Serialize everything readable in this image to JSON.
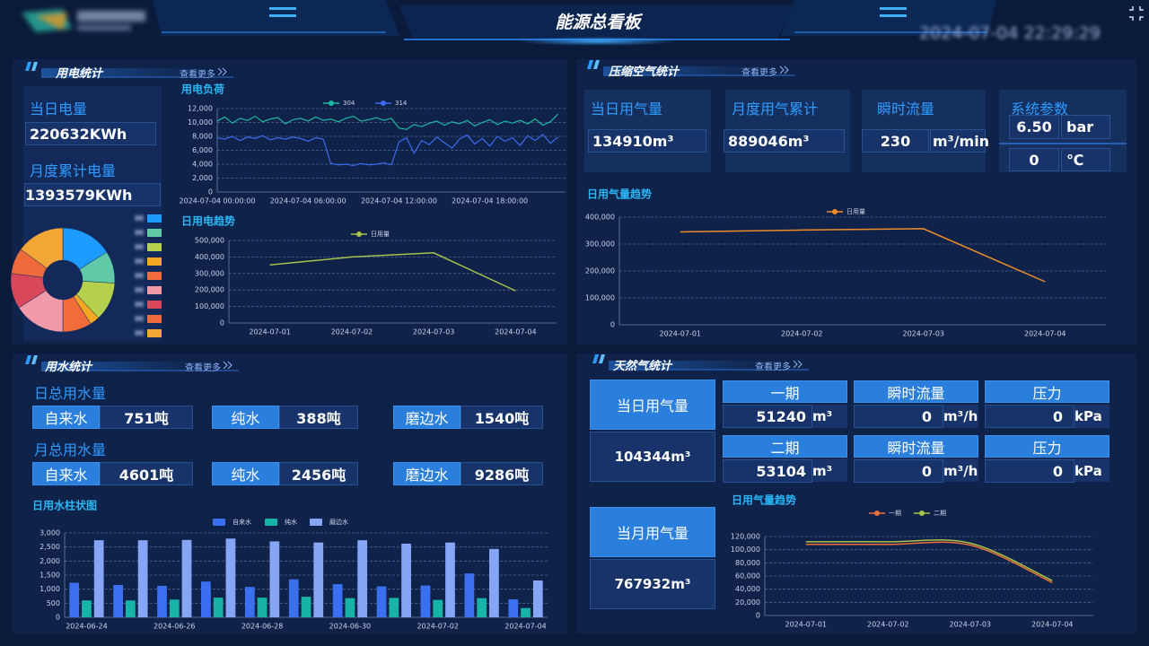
{
  "header": {
    "title": "能源总看板",
    "datetime": "2024-07-04 22:29:29"
  },
  "electricity": {
    "title": "用电统计",
    "more": "查看更多",
    "daily_label": "当日电量",
    "daily_value": "220632KWh",
    "monthly_label": "月度累计电量",
    "monthly_value": "1393579KWh"
  },
  "air": {
    "title": "压缩空气统计",
    "more": "查看更多",
    "cards": [
      {
        "label": "当日用气量",
        "value": "134910m³"
      },
      {
        "label": "月度用气累计",
        "value": "889046m³"
      },
      {
        "label": "瞬时流量",
        "value": "230",
        "unit": "m³/min"
      }
    ],
    "params": {
      "label": "系统参数",
      "pressure": "6.50",
      "pressure_unit": "bar",
      "temperature": "0",
      "temperature_unit": "℃"
    }
  },
  "water": {
    "title": "用水统计",
    "more": "查看更多",
    "groups": [
      {
        "label": "日总用水量",
        "items": [
          {
            "name": "自来水",
            "value": "751吨"
          },
          {
            "name": "纯水",
            "value": "388吨"
          },
          {
            "name": "磨边水",
            "value": "1540吨"
          }
        ]
      },
      {
        "label": "月总用水量",
        "items": [
          {
            "name": "自来水",
            "value": "4601吨"
          },
          {
            "name": "纯水",
            "value": "2456吨"
          },
          {
            "name": "磨边水",
            "value": "9286吨"
          }
        ]
      }
    ]
  },
  "gas": {
    "title": "天然气统计",
    "more": "查看更多",
    "totals": [
      {
        "label": "当日用气量",
        "value": "104344m³"
      },
      {
        "label": "当月用气量",
        "value": "767932m³"
      }
    ],
    "rows": [
      [
        {
          "label": "一期",
          "value": "51240",
          "unit": "m³"
        },
        {
          "label": "瞬时流量",
          "value": "0",
          "unit": "m³/h"
        },
        {
          "label": "压力",
          "value": "0",
          "unit": "kPa"
        }
      ],
      [
        {
          "label": "二期",
          "value": "53104",
          "unit": "m³"
        },
        {
          "label": "瞬时流量",
          "value": "0",
          "unit": "m³/h"
        },
        {
          "label": "压力",
          "value": "0",
          "unit": "kPa"
        }
      ]
    ]
  },
  "chart_data": [
    {
      "type": "pie",
      "categories": [
        null,
        null,
        null,
        null,
        null,
        null,
        null,
        null,
        null
      ],
      "values": [
        16,
        10,
        12,
        3,
        9,
        16,
        11,
        8,
        15
      ],
      "colors": [
        "#1e9bff",
        "#5fc9a8",
        "#b4d04c",
        "#f5a623",
        "#f26b3a",
        "#f09aaa",
        "#d9475a",
        "#ee6a3b",
        "#f3a535"
      ]
    },
    {
      "type": "line",
      "title": "用电负荷",
      "x": [
        "2024-07-04 00:00:00",
        "2024-07-04 00:30:00",
        "2024-07-04 01:00:00",
        "2024-07-04 01:30:00",
        "2024-07-04 02:00:00",
        "2024-07-04 02:30:00",
        "2024-07-04 03:00:00",
        "2024-07-04 03:30:00",
        "2024-07-04 04:00:00",
        "2024-07-04 04:30:00",
        "2024-07-04 05:00:00",
        "2024-07-04 05:30:00",
        "2024-07-04 06:00:00",
        "2024-07-04 06:30:00",
        "2024-07-04 07:00:00",
        "2024-07-04 07:30:00",
        "2024-07-04 08:00:00",
        "2024-07-04 08:30:00",
        "2024-07-04 09:00:00",
        "2024-07-04 09:30:00",
        "2024-07-04 10:00:00",
        "2024-07-04 10:30:00",
        "2024-07-04 11:00:00",
        "2024-07-04 11:30:00",
        "2024-07-04 12:00:00",
        "2024-07-04 12:30:00",
        "2024-07-04 13:00:00",
        "2024-07-04 13:30:00",
        "2024-07-04 14:00:00",
        "2024-07-04 14:30:00",
        "2024-07-04 15:00:00",
        "2024-07-04 15:30:00",
        "2024-07-04 16:00:00",
        "2024-07-04 16:30:00",
        "2024-07-04 17:00:00",
        "2024-07-04 17:30:00",
        "2024-07-04 18:00:00",
        "2024-07-04 18:30:00",
        "2024-07-04 19:00:00",
        "2024-07-04 19:30:00",
        "2024-07-04 20:00:00",
        "2024-07-04 20:30:00",
        "2024-07-04 21:00:00",
        "2024-07-04 21:30:00",
        "2024-07-04 22:00:00",
        "2024-07-04 22:30:00"
      ],
      "xticks": [
        "2024-07-04 00:00:00",
        "2024-07-04 06:00:00",
        "2024-07-04 12:00:00",
        "2024-07-04 18:00:00"
      ],
      "series": [
        {
          "name": "304",
          "color": "#1fb79f",
          "values": [
            10200,
            10800,
            9900,
            10600,
            10300,
            10900,
            10100,
            10500,
            10700,
            9800,
            10400,
            10600,
            10200,
            10800,
            10300,
            10500,
            10100,
            10600,
            10900,
            10200,
            10400,
            10700,
            10300,
            10600,
            9200,
            9000,
            9700,
            9400,
            9900,
            10200,
            9600,
            10100,
            9800,
            10300,
            9500,
            10000,
            10400,
            9700,
            10200,
            9900,
            10300,
            9800,
            10500,
            9600,
            10100,
            11200
          ]
        },
        {
          "name": "314",
          "color": "#3a6cf0",
          "values": [
            7800,
            7600,
            8000,
            7400,
            7900,
            7700,
            8100,
            7500,
            7800,
            7600,
            7900,
            7700,
            7300,
            7800,
            7600,
            4100,
            3900,
            4000,
            3800,
            4100,
            3900,
            4000,
            4200,
            3900,
            7200,
            7800,
            5600,
            7400,
            6800,
            7900,
            7100,
            6300,
            7600,
            8200,
            6900,
            7700,
            6600,
            8000,
            7300,
            7800,
            6700,
            8100,
            7400,
            8300,
            7000,
            7900
          ]
        }
      ],
      "ylim": [
        0,
        12000
      ],
      "yticks": [
        0,
        {
          "value": 2000,
          "label": "2,000"
        },
        {
          "value": 4000,
          "label": "4,000"
        },
        {
          "value": 6000,
          "label": "6,000"
        },
        {
          "value": 8000,
          "label": "8,000"
        },
        {
          "value": 10000,
          "label": "10,000"
        },
        {
          "value": 12000,
          "label": "12,000"
        }
      ],
      "grid": true
    },
    {
      "type": "line",
      "title": "日用电趋势",
      "categories": [
        "2024-07-01",
        "2024-07-02",
        "2024-07-03",
        "2024-07-04"
      ],
      "series": [
        {
          "name": "日用量",
          "color": "#a6c24a",
          "values": [
            352000,
            400000,
            425000,
            195000
          ]
        }
      ],
      "ylim": [
        0,
        500000
      ],
      "yticks": [
        0,
        {
          "value": 100000,
          "label": "100,000"
        },
        {
          "value": 200000,
          "label": "200,000"
        },
        {
          "value": 300000,
          "label": "300,000"
        },
        {
          "value": 400000,
          "label": "400,000"
        },
        {
          "value": 500000,
          "label": "500,000"
        }
      ],
      "grid": true
    },
    {
      "type": "line",
      "title": "日用气量趋势",
      "categories": [
        "2024-07-01",
        "2024-07-02",
        "2024-07-03",
        "2024-07-04"
      ],
      "series": [
        {
          "name": "日用量",
          "color": "#ef8c2a",
          "values": [
            345000,
            352000,
            357000,
            160000
          ]
        }
      ],
      "ylim": [
        0,
        400000
      ],
      "yticks": [
        0,
        {
          "value": 100000,
          "label": "100,000"
        },
        {
          "value": 200000,
          "label": "200,000"
        },
        {
          "value": 300000,
          "label": "300,000"
        },
        {
          "value": 400000,
          "label": "400,000"
        }
      ],
      "grid": true
    },
    {
      "type": "bar",
      "title": "日用水柱状图",
      "categories": [
        "2024-06-24",
        null,
        "2024-06-26",
        null,
        "2024-06-28",
        null,
        "2024-06-30",
        null,
        "2024-07-02",
        null,
        "2024-07-04"
      ],
      "series": [
        {
          "name": "自来水",
          "color": "#3a6ff0",
          "values": [
            1230,
            1150,
            1120,
            1270,
            1080,
            1350,
            1180,
            1100,
            1130,
            1560,
            640
          ]
        },
        {
          "name": "纯水",
          "color": "#17b3a6",
          "values": [
            600,
            600,
            630,
            700,
            700,
            730,
            680,
            690,
            620,
            680,
            330
          ]
        },
        {
          "name": "磨边水",
          "color": "#86a6f5",
          "values": [
            2740,
            2740,
            2750,
            2800,
            2700,
            2660,
            2740,
            2620,
            2660,
            2430,
            1310
          ]
        }
      ],
      "ylim": [
        0,
        3000
      ],
      "yticks": [
        0,
        500,
        {
          "value": 1000,
          "label": "1,000"
        },
        {
          "value": 1500,
          "label": "1,500"
        },
        {
          "value": 2000,
          "label": "2,000"
        },
        {
          "value": 2500,
          "label": "2,500"
        },
        {
          "value": 3000,
          "label": "3,000"
        }
      ],
      "grid": true
    },
    {
      "type": "line",
      "title": "日用气量趋势",
      "smooth": true,
      "categories": [
        "2024-07-01",
        "2024-07-02",
        "2024-07-03",
        "2024-07-04"
      ],
      "series": [
        {
          "name": "一期",
          "color": "#e8703a",
          "values": [
            108000,
            108000,
            107000,
            50000
          ]
        },
        {
          "name": "二期",
          "color": "#a6c24a",
          "values": [
            112000,
            112000,
            110000,
            53000
          ]
        }
      ],
      "ylim": [
        0,
        120000
      ],
      "yticks": [
        0,
        {
          "value": 20000,
          "label": "20,000"
        },
        {
          "value": 40000,
          "label": "40,000"
        },
        {
          "value": 60000,
          "label": "60,000"
        },
        {
          "value": 80000,
          "label": "80,000"
        },
        {
          "value": 100000,
          "label": "100,000"
        },
        {
          "value": 120000,
          "label": "120,000"
        }
      ],
      "grid": true
    }
  ]
}
